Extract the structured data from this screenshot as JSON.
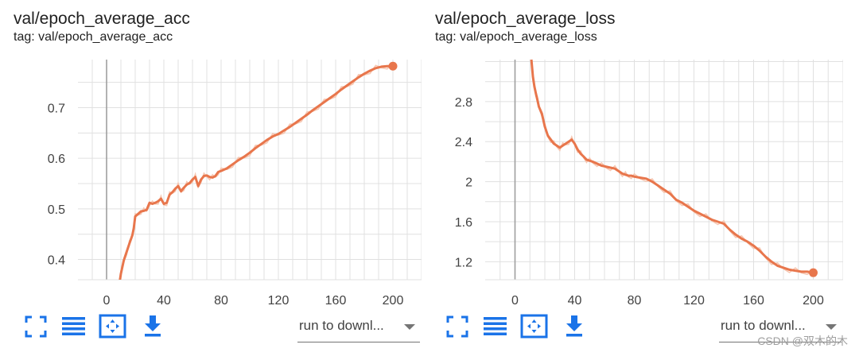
{
  "colors": {
    "accent": "#E8764C",
    "raw": "#F6C7B2",
    "icon": "#1A73E8",
    "grid": "#E0E0E0",
    "zero_line": "#9E9E9E"
  },
  "icons": [
    "fullscreen-icon",
    "toggle-y-log-icon",
    "fit-domain-icon",
    "download-icon",
    "dropdown-caret-icon"
  ],
  "watermark": "CSDN @双木的木",
  "cards": [
    {
      "title": "val/epoch_average_acc",
      "tag": "tag: val/epoch_average_acc",
      "run_select": "run to downl...",
      "chart_data": {
        "type": "line",
        "x_ticks": [
          0,
          40,
          80,
          120,
          160,
          200
        ],
        "y_ticks": [
          0.4,
          0.5,
          0.6,
          0.7
        ],
        "xlim": [
          -20,
          220
        ],
        "ylim": [
          0.36,
          0.795
        ],
        "grid": true,
        "series": [
          {
            "x": [
              9,
              10,
              12,
              14,
              16,
              18,
              19,
              20,
              22,
              24,
              26,
              28,
              30,
              32,
              34,
              36,
              38,
              40,
              42,
              44,
              46,
              48,
              50,
              52,
              54,
              56,
              58,
              60,
              62,
              64,
              66,
              68,
              70,
              72,
              74,
              76,
              78,
              80,
              84,
              88,
              92,
              96,
              100,
              104,
              108,
              112,
              116,
              120,
              124,
              128,
              132,
              136,
              140,
              144,
              148,
              152,
              156,
              160,
              164,
              168,
              172,
              176,
              180,
              184,
              188,
              192,
              196,
              200
            ],
            "y": [
              0.353,
              0.372,
              0.398,
              0.415,
              0.432,
              0.448,
              0.462,
              0.485,
              0.49,
              0.495,
              0.496,
              0.498,
              0.512,
              0.51,
              0.512,
              0.515,
              0.52,
              0.51,
              0.512,
              0.528,
              0.533,
              0.54,
              0.545,
              0.535,
              0.542,
              0.548,
              0.551,
              0.558,
              0.563,
              0.545,
              0.558,
              0.565,
              0.566,
              0.563,
              0.562,
              0.565,
              0.573,
              0.575,
              0.58,
              0.588,
              0.596,
              0.603,
              0.611,
              0.62,
              0.628,
              0.636,
              0.643,
              0.648,
              0.655,
              0.662,
              0.67,
              0.678,
              0.686,
              0.695,
              0.703,
              0.711,
              0.719,
              0.727,
              0.736,
              0.744,
              0.752,
              0.76,
              0.767,
              0.773,
              0.778,
              0.781,
              0.782,
              0.782
            ]
          }
        ]
      }
    },
    {
      "title": "val/epoch_average_loss",
      "tag": "tag: val/epoch_average_loss",
      "run_select": "run to downl...",
      "chart_data": {
        "type": "line",
        "x_ticks": [
          0,
          40,
          80,
          120,
          160,
          200
        ],
        "y_ticks": [
          1.2,
          1.6,
          2,
          2.4,
          2.8
        ],
        "xlim": [
          -20,
          220
        ],
        "ylim": [
          1.02,
          3.22
        ],
        "grid": true,
        "series": [
          {
            "x": [
              11,
              12,
              13,
              14,
              15,
              16,
              18,
              20,
              22,
              24,
              26,
              28,
              30,
              32,
              34,
              36,
              38,
              40,
              42,
              44,
              46,
              48,
              50,
              52,
              55,
              58,
              61,
              64,
              67,
              70,
              72,
              74,
              76,
              78,
              80,
              84,
              88,
              92,
              96,
              100,
              104,
              108,
              112,
              116,
              120,
              124,
              128,
              132,
              136,
              140,
              144,
              148,
              152,
              156,
              160,
              164,
              168,
              172,
              176,
              180,
              184,
              188,
              192,
              196,
              200
            ],
            "y": [
              3.22,
              3.05,
              2.95,
              2.88,
              2.82,
              2.75,
              2.68,
              2.55,
              2.46,
              2.42,
              2.38,
              2.36,
              2.34,
              2.36,
              2.38,
              2.4,
              2.42,
              2.38,
              2.32,
              2.28,
              2.25,
              2.22,
              2.21,
              2.2,
              2.18,
              2.16,
              2.15,
              2.14,
              2.13,
              2.1,
              2.08,
              2.07,
              2.06,
              2.06,
              2.05,
              2.04,
              2.03,
              2.0,
              1.96,
              1.92,
              1.88,
              1.82,
              1.79,
              1.75,
              1.71,
              1.68,
              1.65,
              1.62,
              1.6,
              1.58,
              1.52,
              1.47,
              1.43,
              1.4,
              1.36,
              1.31,
              1.25,
              1.2,
              1.16,
              1.14,
              1.12,
              1.11,
              1.1,
              1.1,
              1.09
            ]
          }
        ]
      }
    }
  ]
}
